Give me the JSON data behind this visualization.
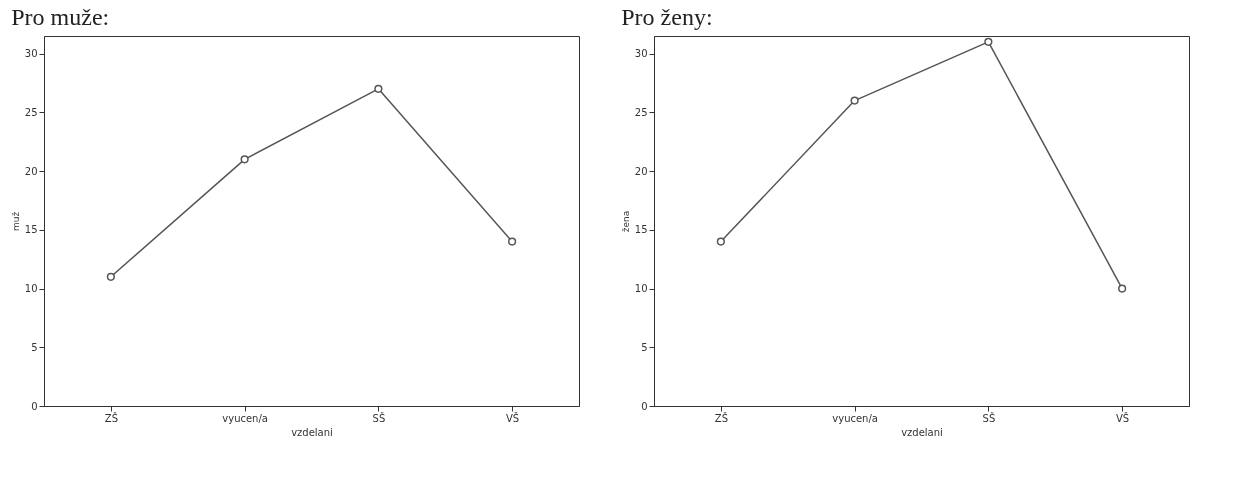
{
  "chart_data": [
    {
      "type": "line",
      "title": "Pro muže:",
      "xlabel": "vzdelani",
      "ylabel": "muž",
      "categories": [
        "ZŠ",
        "vyucen/a",
        "SŠ",
        "VŠ"
      ],
      "values": [
        11,
        21,
        27,
        14
      ],
      "color": "#555555",
      "ylim": [
        0,
        31.5
      ],
      "yticks": [
        0,
        5,
        10,
        15,
        20,
        25,
        30
      ],
      "marker": "circle",
      "grid": false
    },
    {
      "type": "line",
      "title": "Pro ženy:",
      "xlabel": "vzdelani",
      "ylabel": "žena",
      "categories": [
        "ZŠ",
        "vyucen/a",
        "SŠ",
        "VŠ"
      ],
      "values": [
        14,
        26,
        31,
        10
      ],
      "color": "#555555",
      "ylim": [
        0,
        31.5
      ],
      "yticks": [
        0,
        5,
        10,
        15,
        20,
        25,
        30
      ],
      "marker": "circle",
      "grid": false
    }
  ]
}
